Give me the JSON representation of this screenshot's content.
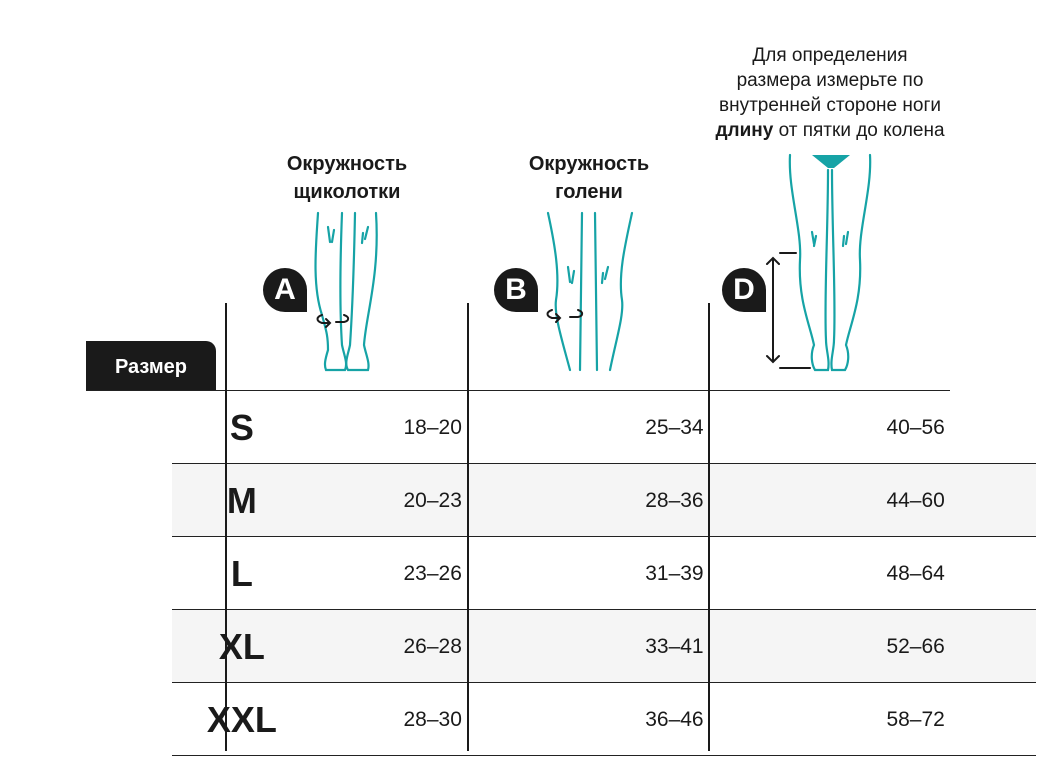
{
  "headers": {
    "ankle": [
      "Окружность",
      "щиколотки"
    ],
    "calf": [
      "Окружность",
      "голени"
    ],
    "note": {
      "line1": "Для определения",
      "line2": "размера измерьте по",
      "line3": "внутренней стороне ноги",
      "bold": "длину",
      "rest": " от пятки до колена"
    },
    "size_label": "Размер"
  },
  "badges": {
    "ankle": "A",
    "calf": "B",
    "length": "D"
  },
  "colors": {
    "accent": "#16a3a6",
    "dark": "#1a1a1a",
    "alt_row": "#f5f5f5"
  },
  "rows": [
    {
      "size": "S",
      "ankle": "18–20",
      "calf": "25–34",
      "length": "40–56"
    },
    {
      "size": "M",
      "ankle": "20–23",
      "calf": "28–36",
      "length": "44–60"
    },
    {
      "size": "L",
      "ankle": "23–26",
      "calf": "31–39",
      "length": "48–64"
    },
    {
      "size": "XL",
      "ankle": "26–28",
      "calf": "33–41",
      "length": "52–66"
    },
    {
      "size": "XXL",
      "ankle": "28–30",
      "calf": "36–46",
      "length": "58–72"
    }
  ]
}
